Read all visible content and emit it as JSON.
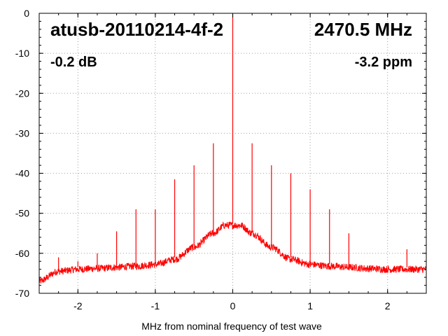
{
  "chart_data": {
    "type": "line",
    "title": "atusb-20110214-4f-2",
    "frequency_label": "2470.5 MHz",
    "level_label": "-0.2 dB",
    "offset_label": "-3.2 ppm",
    "xlabel": "MHz from nominal frequency of test wave",
    "ylabel": "",
    "xlim": [
      -2.5,
      2.5
    ],
    "ylim": [
      -70,
      0
    ],
    "x_ticks": [
      -2,
      -1,
      0,
      1,
      2
    ],
    "x_tick_labels": [
      "-2",
      "-1",
      "0",
      "1",
      "2"
    ],
    "y_ticks": [
      0,
      -10,
      -20,
      -30,
      -40,
      -50,
      -60,
      -70
    ],
    "y_tick_labels": [
      "0",
      "-10",
      "-20",
      "-30",
      "-40",
      "-50",
      "-60",
      "-70"
    ],
    "grid": true,
    "line_color": "#ff0000",
    "noise_floor": {
      "x": [
        -2.5,
        -2.25,
        -2.0,
        -1.75,
        -1.5,
        -1.25,
        -1.0,
        -0.75,
        -0.5,
        -0.25,
        -0.1,
        0.0,
        0.1,
        0.25,
        0.5,
        0.75,
        1.0,
        1.25,
        1.5,
        1.75,
        2.0,
        2.25,
        2.5
      ],
      "y": [
        -67,
        -64.5,
        -64,
        -63.8,
        -63.5,
        -63.2,
        -62.8,
        -61.5,
        -58.5,
        -55,
        -53,
        -53,
        -53,
        -55,
        -58.5,
        -61.5,
        -62.8,
        -63.2,
        -63.5,
        -63.8,
        -64,
        -64,
        -64
      ]
    },
    "spurs": [
      {
        "x": -2.25,
        "y": -61
      },
      {
        "x": -2.0,
        "y": -62
      },
      {
        "x": -1.75,
        "y": -60
      },
      {
        "x": -1.5,
        "y": -54.5
      },
      {
        "x": -1.25,
        "y": -49
      },
      {
        "x": -1.0,
        "y": -49
      },
      {
        "x": -0.75,
        "y": -41.5
      },
      {
        "x": -0.5,
        "y": -38
      },
      {
        "x": -0.25,
        "y": -32.5
      },
      {
        "x": 0.0,
        "y": -0.2
      },
      {
        "x": 0.25,
        "y": -32.5
      },
      {
        "x": 0.5,
        "y": -38
      },
      {
        "x": 0.75,
        "y": -40
      },
      {
        "x": 1.0,
        "y": -44
      },
      {
        "x": 1.25,
        "y": -49
      },
      {
        "x": 1.5,
        "y": -55
      },
      {
        "x": 2.25,
        "y": -59
      }
    ]
  }
}
